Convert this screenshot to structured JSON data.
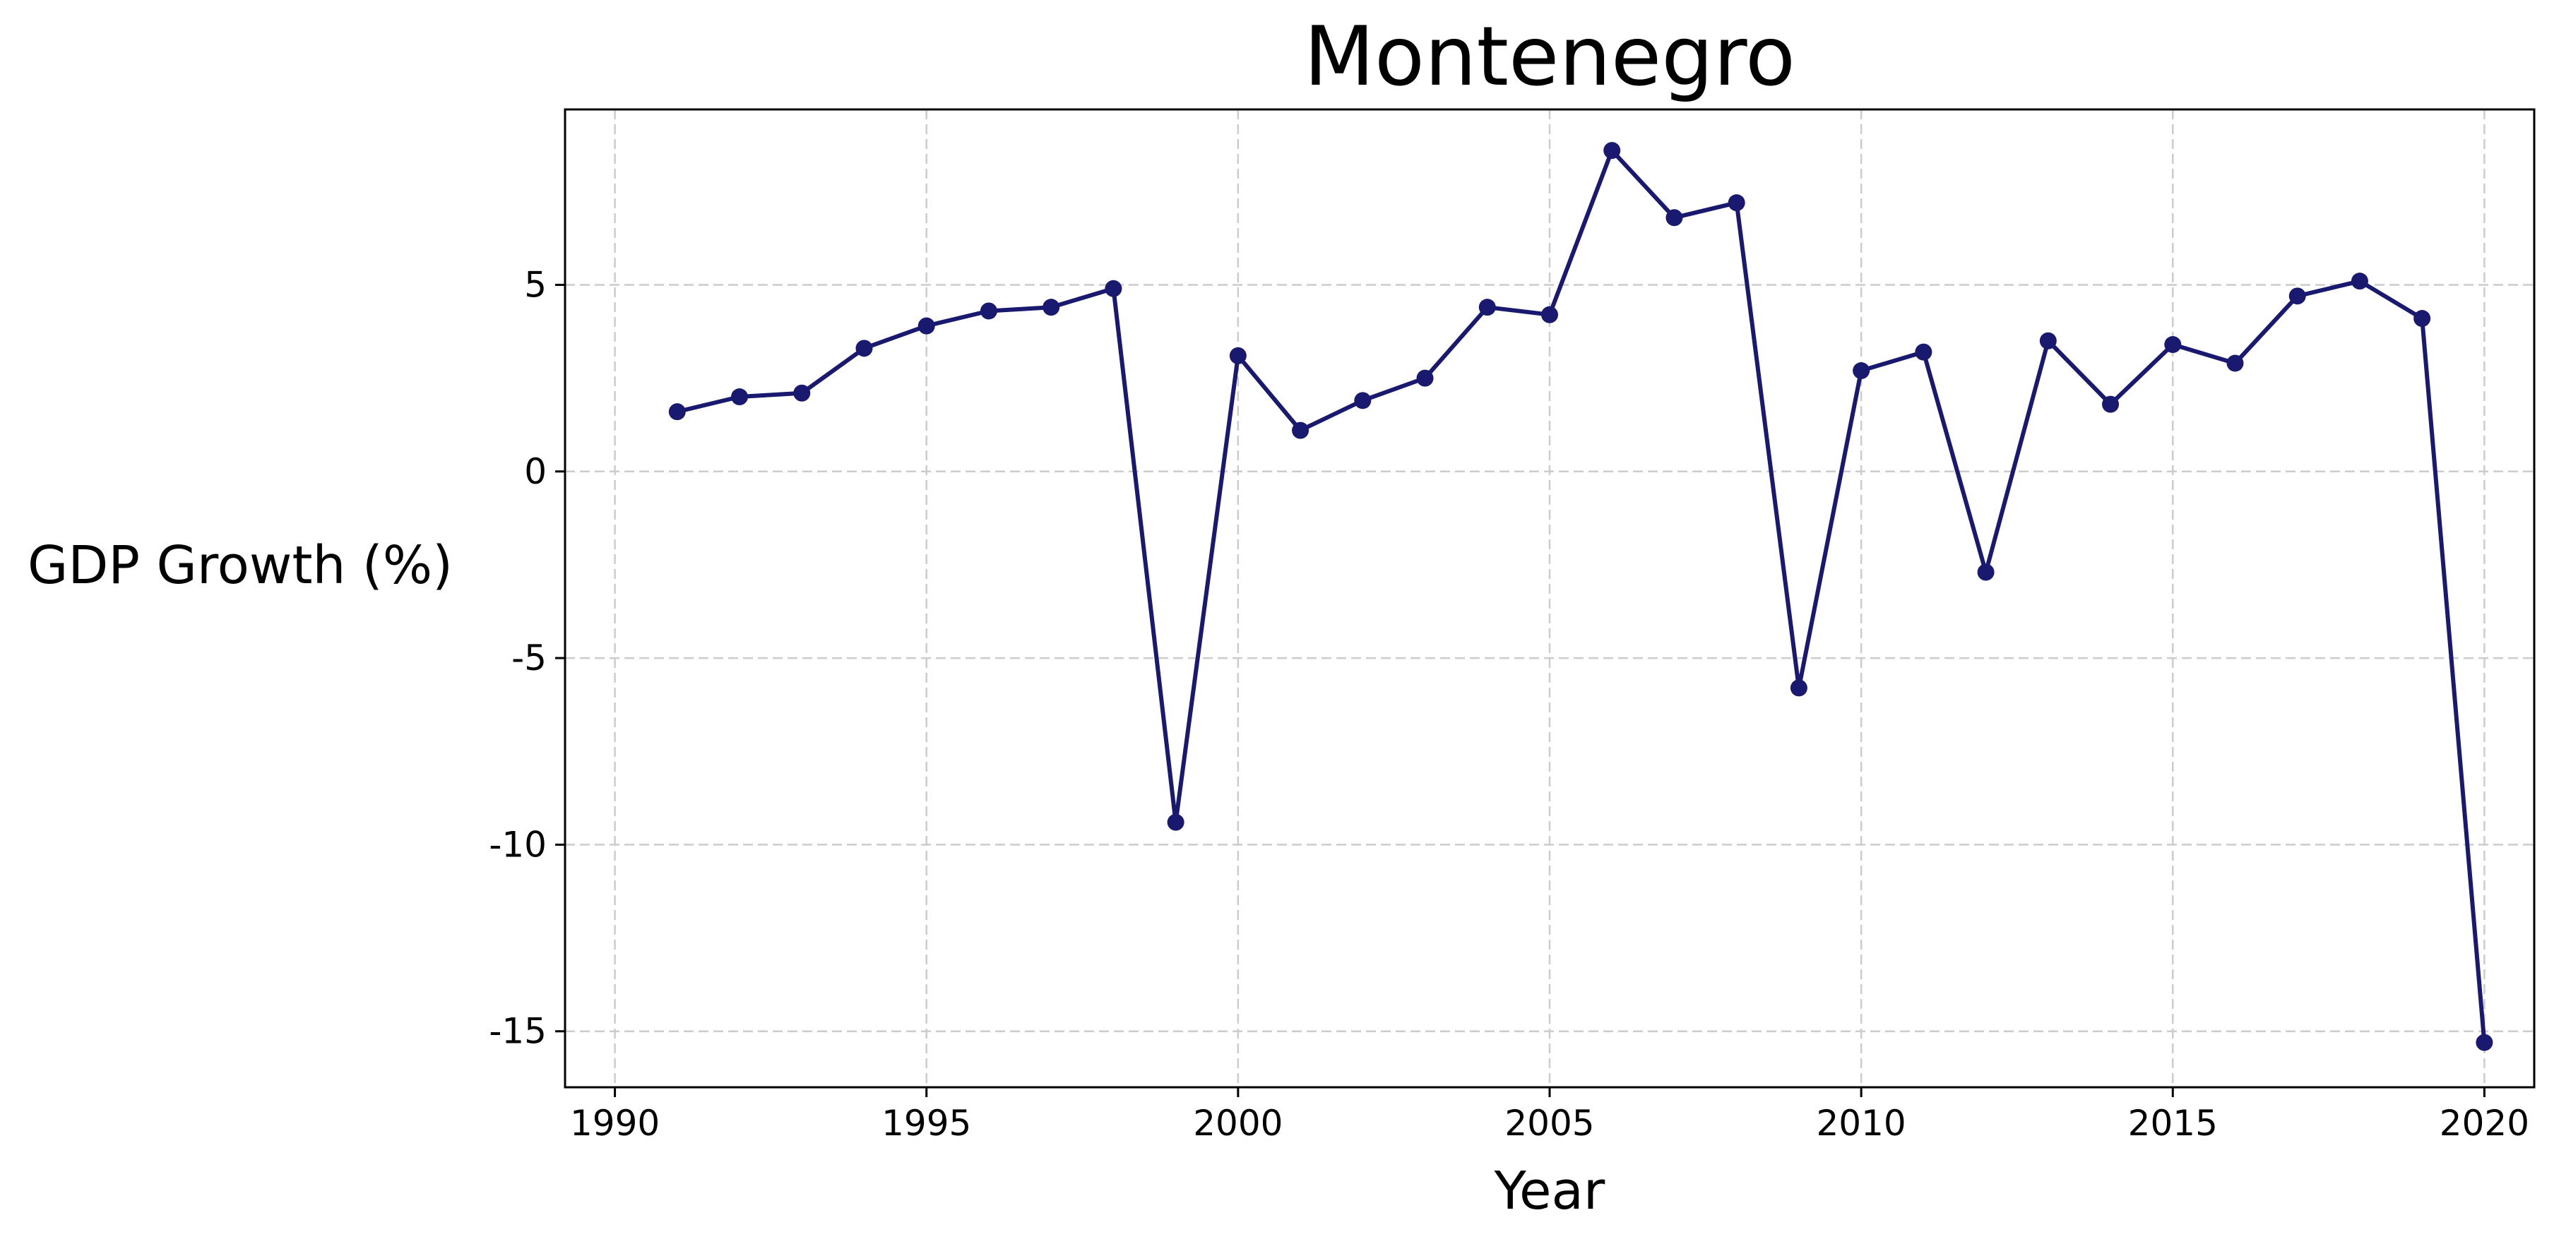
{
  "colors": {
    "series": "#191970",
    "grid": "#cccccc",
    "background": "#ffffff"
  },
  "chart_data": {
    "type": "line",
    "title": "Montenegro",
    "xlabel": "Year",
    "ylabel": "GDP Growth (%)",
    "xlim": [
      1989.2,
      2020.8
    ],
    "ylim": [
      -16.5,
      9.7
    ],
    "xticks": [
      1990,
      1995,
      2000,
      2005,
      2010,
      2015,
      2020
    ],
    "yticks": [
      -15,
      -10,
      -5,
      0,
      5
    ],
    "xtick_labels": [
      "1990",
      "1995",
      "2000",
      "2005",
      "2010",
      "2015",
      "2020"
    ],
    "ytick_labels": [
      "-15",
      "-10",
      "-5",
      "0",
      "5"
    ],
    "grid": true,
    "marker": "circle",
    "series": [
      {
        "x": [
          1991,
          1992,
          1993,
          1994,
          1995,
          1996,
          1997,
          1998,
          1999,
          2000,
          2001,
          2002,
          2003,
          2004,
          2005,
          2006,
          2007,
          2008,
          2009,
          2010,
          2011,
          2012,
          2013,
          2014,
          2015,
          2016,
          2017,
          2018,
          2019,
          2020
        ],
        "values": [
          1.6,
          2.0,
          2.1,
          3.3,
          3.9,
          4.3,
          4.4,
          4.9,
          -9.4,
          3.1,
          1.1,
          1.9,
          2.5,
          4.4,
          4.2,
          8.6,
          6.8,
          7.2,
          -5.8,
          2.7,
          3.2,
          -2.7,
          3.5,
          1.8,
          3.4,
          2.9,
          4.7,
          5.1,
          4.1,
          -15.3
        ]
      }
    ]
  }
}
